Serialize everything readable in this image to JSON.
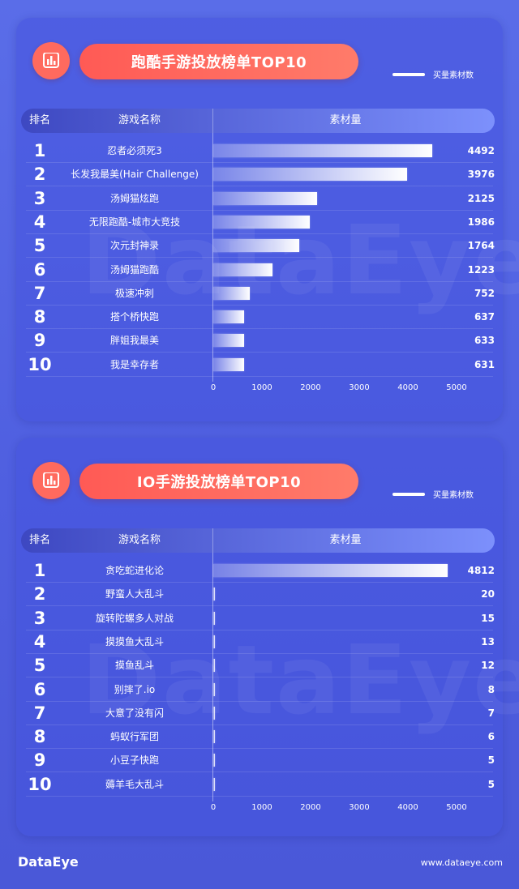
{
  "watermark": "DataEye",
  "footer": {
    "logo": "DataEye",
    "url": "www.dataeye.com"
  },
  "chart_data": [
    {
      "type": "bar",
      "title": "跑酷手游投放榜单TOP10",
      "legend": "买量素材数",
      "columns": {
        "rank": "排名",
        "name": "游戏名称",
        "value": "素材量"
      },
      "ranks": [
        "1",
        "2",
        "3",
        "4",
        "5",
        "6",
        "7",
        "8",
        "9",
        "10"
      ],
      "categories": [
        "忍者必须死3",
        "长发我最美(Hair Challenge)",
        "汤姆猫炫跑",
        "无限跑酷-城市大竞技",
        "次元封神录",
        "汤姆猫跑酷",
        "极速冲刺",
        "搭个桥快跑",
        "胖姐我最美",
        "我是幸存者"
      ],
      "values": [
        4492,
        3976,
        2125,
        1986,
        1764,
        1223,
        752,
        637,
        633,
        631
      ],
      "xlim": [
        0,
        5000
      ],
      "ticks": [
        "0",
        "1000",
        "2000",
        "3000",
        "4000",
        "5000"
      ]
    },
    {
      "type": "bar",
      "title": "IO手游投放榜单TOP10",
      "legend": "买量素材数",
      "columns": {
        "rank": "排名",
        "name": "游戏名称",
        "value": "素材量"
      },
      "ranks": [
        "1",
        "2",
        "3",
        "4",
        "5",
        "6",
        "7",
        "8",
        "9",
        "10"
      ],
      "categories": [
        "贪吃蛇进化论",
        "野蛮人大乱斗",
        "旋转陀螺多人对战",
        "摸摸鱼大乱斗",
        "摸鱼乱斗",
        "别摔了.io",
        "大意了没有闪",
        "蚂蚁行军团",
        "小豆子快跑",
        "薅羊毛大乱斗"
      ],
      "values": [
        4812,
        20,
        15,
        13,
        12,
        8,
        7,
        6,
        5,
        5
      ],
      "xlim": [
        0,
        5000
      ],
      "ticks": [
        "0",
        "1000",
        "2000",
        "3000",
        "4000",
        "5000"
      ]
    }
  ]
}
